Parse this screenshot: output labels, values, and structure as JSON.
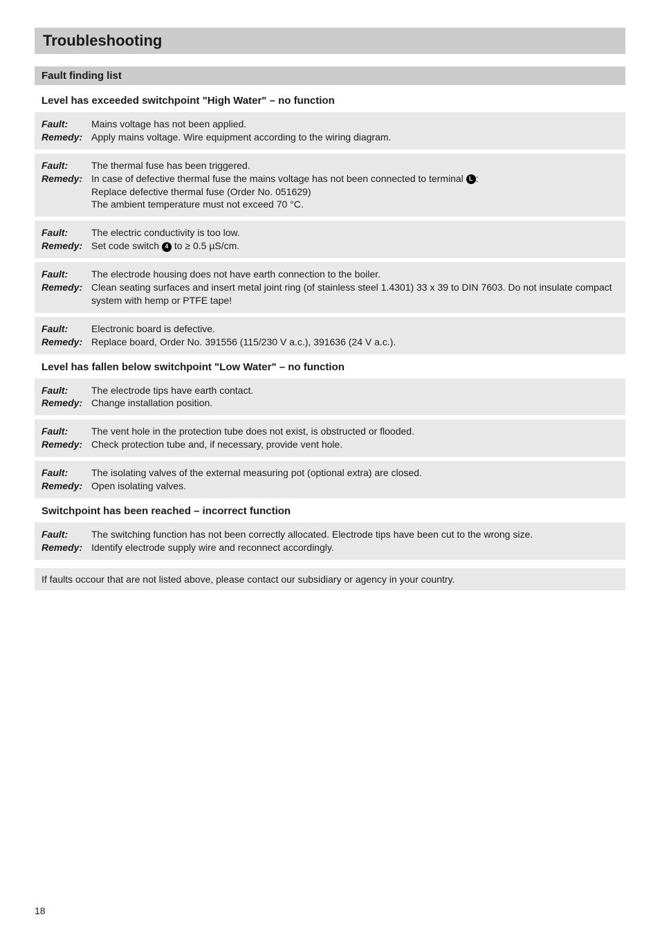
{
  "page_title": "Troubleshooting",
  "section_header": "Fault finding list",
  "labels": {
    "fault": "Fault:",
    "remedy": "Remedy:"
  },
  "group1": {
    "heading": "Level has exceeded switchpoint \"High Water\" – no function",
    "items": [
      {
        "fault": "Mains voltage has not been applied.",
        "remedy": "Apply mains voltage. Wire equipment according to the wiring diagram."
      },
      {
        "fault": "The thermal fuse has been triggered.",
        "remedy_pre": "In case of defective thermal fuse the mains voltage has not been connected to terminal ",
        "remedy_badge": "L",
        "remedy_post": ":\nReplace defective thermal fuse (Order No. 051629)\nThe ambient temperature must not exceed 70 °C."
      },
      {
        "fault": "The electric conductivity is too low.",
        "remedy_pre": "Set code switch ",
        "remedy_badge": "4",
        "remedy_post": " to ≥ 0.5 µS/cm."
      },
      {
        "fault": "The electrode housing does not have earth connection to the boiler.",
        "remedy": "Clean seating surfaces and insert metal joint ring (of stainless steel 1.4301) 33 x 39 to DIN 7603. Do not insulate compact system with hemp or PTFE tape!"
      },
      {
        "fault": "Electronic board is defective.",
        "remedy": "Replace board, Order No. 391556 (115/230 V a.c.), 391636 (24 V a.c.)."
      }
    ]
  },
  "group2": {
    "heading": "Level has fallen below switchpoint \"Low Water\" – no function",
    "items": [
      {
        "fault": "The electrode tips have earth contact.",
        "remedy": "Change installation position."
      },
      {
        "fault": "The vent hole in the protection tube does not exist, is obstructed or flooded.",
        "remedy": "Check protection tube and, if necessary, provide vent hole."
      },
      {
        "fault": "The isolating valves of the external measuring pot (optional extra) are closed.",
        "remedy": "Open isolating valves."
      }
    ]
  },
  "group3": {
    "heading": "Switchpoint has been reached – incorrect function",
    "items": [
      {
        "fault": "The switching function has not been correctly allocated. Electrode tips have been cut to the wrong size.",
        "remedy": "Identify electrode supply wire and reconnect accordingly."
      }
    ]
  },
  "footnote": "If faults occour that are not listed above, please contact our subsidiary or agency in your country.",
  "page_number": "18",
  "colors": {
    "header_bg": "#cccccc",
    "block_bg": "#e8e8e8",
    "text": "#1a1a1a",
    "page_bg": "#ffffff"
  },
  "typography": {
    "title_fontsize": 22,
    "heading_fontsize": 15,
    "body_fontsize": 14
  }
}
